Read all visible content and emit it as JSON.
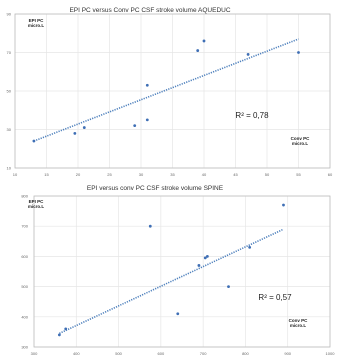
{
  "chart_data": [
    {
      "type": "scatter",
      "title": "EPI PC versus Conv PC    CSF stroke volume AQUEDUC",
      "ylabel": [
        "EPI PC",
        "micro.L"
      ],
      "xlabel": [
        "Conv PC",
        "micro.L"
      ],
      "xlim": [
        10,
        60
      ],
      "ylim": [
        10,
        90
      ],
      "xticks": [
        "10",
        "15",
        "20",
        "25",
        "30",
        "35",
        "40",
        "45",
        "50",
        "55",
        "60"
      ],
      "yticks": [
        "10",
        "30",
        "50",
        "70",
        "90"
      ],
      "grid": true,
      "trendline": {
        "x": [
          13,
          55
        ],
        "y": [
          24,
          77
        ]
      },
      "r2_label": "R² = 0,78",
      "points": [
        {
          "x": 13,
          "y": 24
        },
        {
          "x": 19.5,
          "y": 28
        },
        {
          "x": 21,
          "y": 31
        },
        {
          "x": 29,
          "y": 32
        },
        {
          "x": 31,
          "y": 53
        },
        {
          "x": 31,
          "y": 35
        },
        {
          "x": 39,
          "y": 71
        },
        {
          "x": 40,
          "y": 76
        },
        {
          "x": 47,
          "y": 69
        },
        {
          "x": 55,
          "y": 70
        }
      ]
    },
    {
      "type": "scatter",
      "title": "EPI versus conv PC      CSF stroke volume SPINE",
      "ylabel": [
        "EPI PC",
        "micro.L"
      ],
      "xlabel": [
        "Conv PC",
        "micro.L"
      ],
      "xlim": [
        300,
        1000
      ],
      "ylim": [
        300,
        800
      ],
      "xticks": [
        "300",
        "400",
        "500",
        "600",
        "700",
        "800",
        "900",
        "1000"
      ],
      "yticks": [
        "300",
        "400",
        "500",
        "600",
        "700",
        "800"
      ],
      "grid": true,
      "trendline": {
        "x": [
          360,
          890
        ],
        "y": [
          345,
          690
        ]
      },
      "r2_label": "R² = 0,57",
      "points": [
        {
          "x": 360,
          "y": 340
        },
        {
          "x": 375,
          "y": 360
        },
        {
          "x": 575,
          "y": 700
        },
        {
          "x": 640,
          "y": 410
        },
        {
          "x": 690,
          "y": 570
        },
        {
          "x": 705,
          "y": 595
        },
        {
          "x": 710,
          "y": 600
        },
        {
          "x": 760,
          "y": 500
        },
        {
          "x": 810,
          "y": 630
        },
        {
          "x": 890,
          "y": 770
        }
      ]
    }
  ]
}
